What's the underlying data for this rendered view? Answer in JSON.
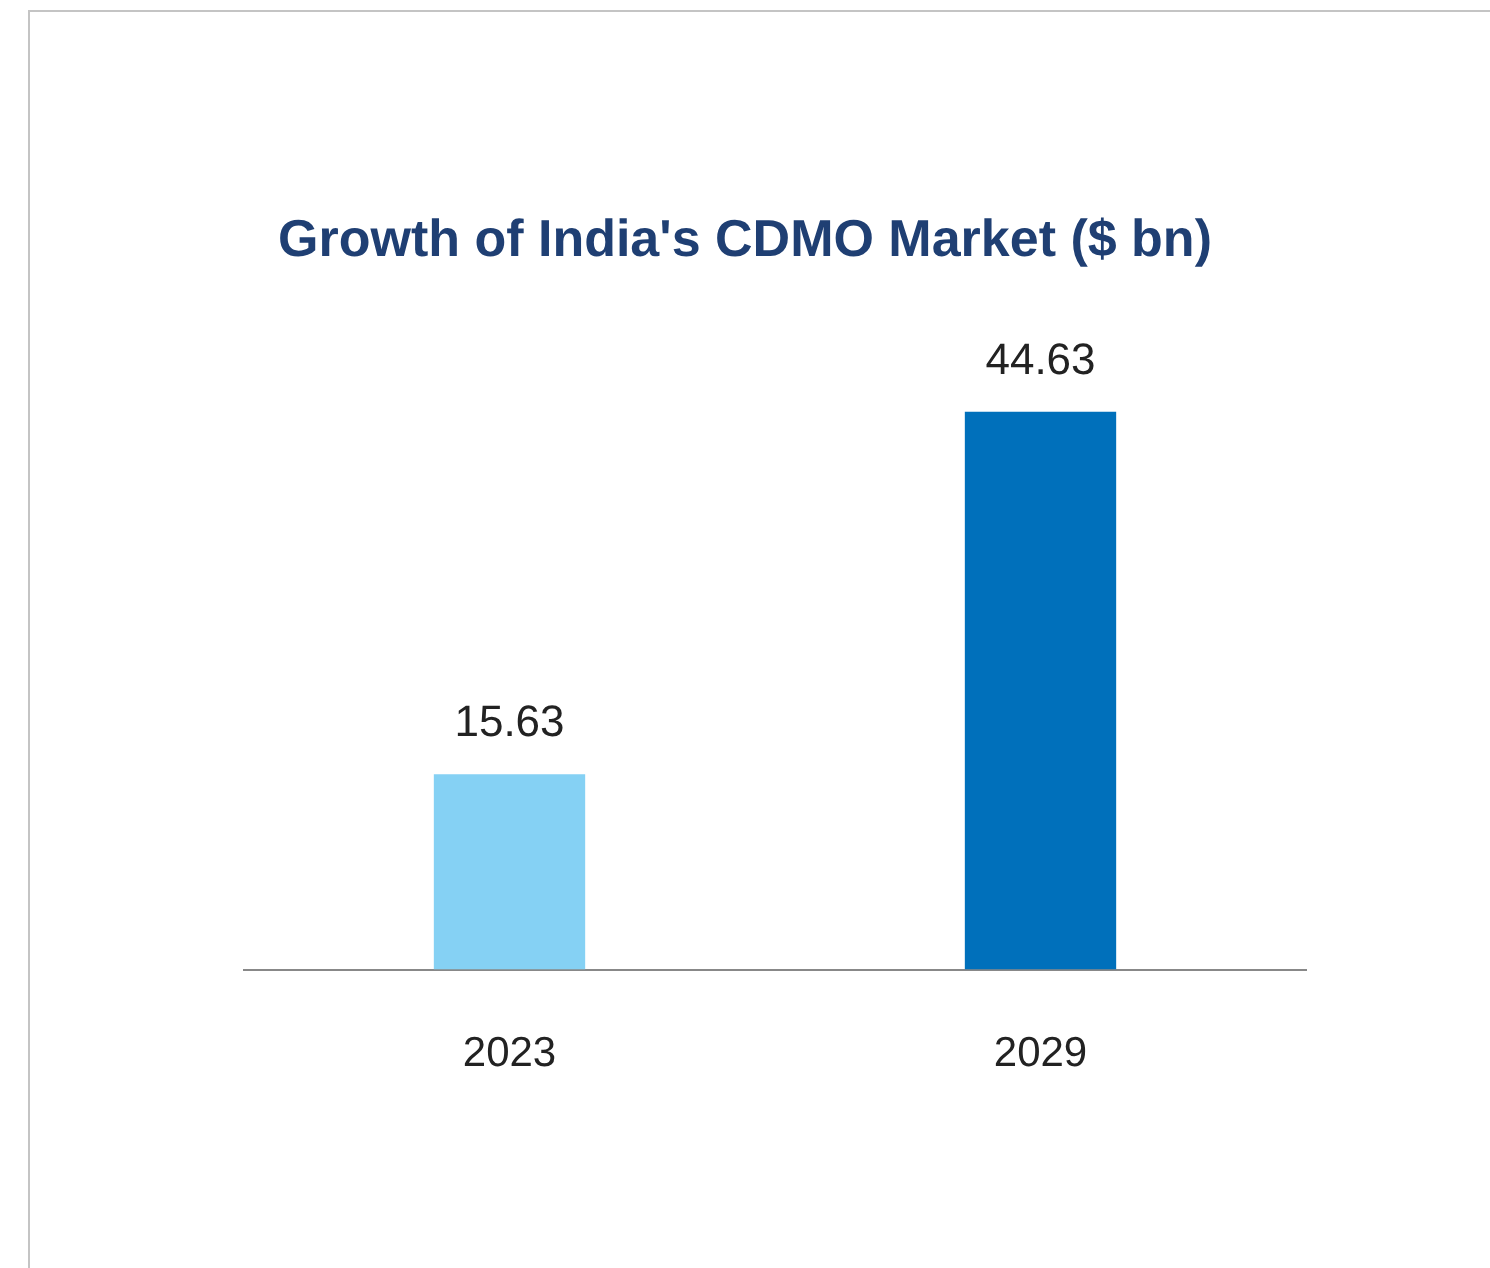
{
  "chart_data": {
    "type": "bar",
    "title": "Growth of India's CDMO Market ($ bn)",
    "categories": [
      "2023",
      "2029"
    ],
    "values": [
      15.63,
      44.63
    ],
    "colors": [
      "#85d1f4",
      "#0070bb"
    ],
    "data_labels": true,
    "grid": false,
    "legend": false
  }
}
